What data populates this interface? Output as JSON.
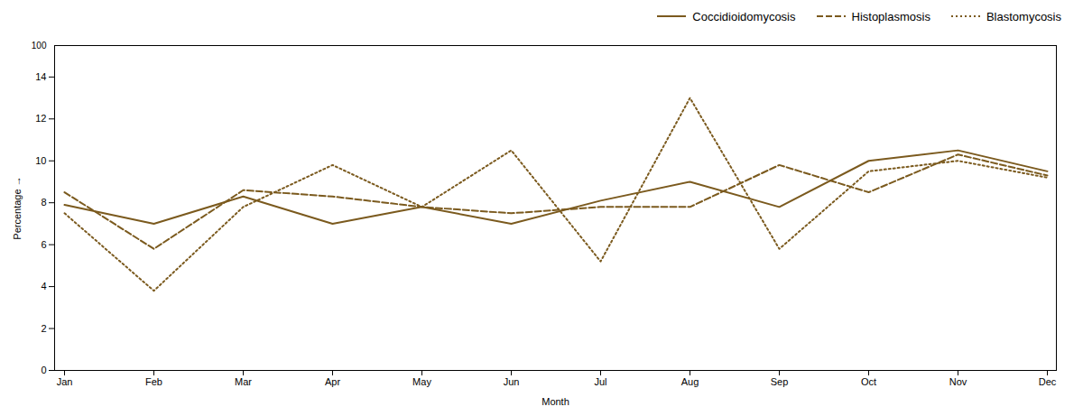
{
  "chart_data": {
    "type": "line",
    "xlabel": "Month",
    "ylabel": "Percentage",
    "categories": [
      "Jan",
      "Feb",
      "Mar",
      "Apr",
      "May",
      "Jun",
      "Jul",
      "Aug",
      "Sep",
      "Oct",
      "Nov",
      "Dec"
    ],
    "series": [
      {
        "name": "Coccidioidomycosis",
        "color": "#7B5A1E",
        "line_style": "solid",
        "values": [
          7.9,
          7.0,
          8.3,
          7.0,
          7.8,
          7.0,
          8.1,
          9.0,
          7.8,
          10.0,
          10.5,
          9.5
        ]
      },
      {
        "name": "Histoplasmosis",
        "color": "#7B5A1E",
        "line_style": "dashed",
        "values": [
          8.5,
          5.8,
          8.6,
          8.3,
          7.8,
          7.5,
          7.8,
          7.8,
          9.8,
          8.5,
          10.3,
          9.3
        ]
      },
      {
        "name": "Blastomycosis",
        "color": "#7B5A1E",
        "line_style": "dotted",
        "values": [
          7.5,
          3.8,
          7.8,
          9.8,
          7.8,
          10.5,
          5.2,
          13.0,
          5.8,
          9.5,
          10.0,
          9.2
        ]
      }
    ],
    "ylim": [
      0,
      15.5
    ],
    "yticks": [
      0,
      2,
      4,
      6,
      8,
      10,
      12,
      14
    ],
    "annotations": [
      {
        "text": "100"
      }
    ],
    "legend": "upper right",
    "grid": false
  }
}
